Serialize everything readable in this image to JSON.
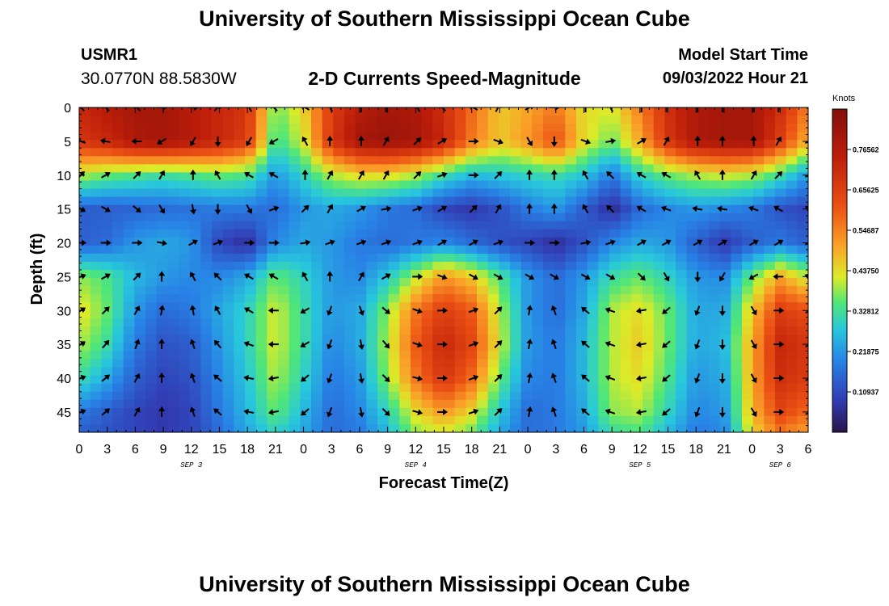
{
  "page": {
    "title": "University of Southern Mississippi Ocean Cube",
    "bottom_title": "University of Southern Mississippi Ocean Cube",
    "station_id": "USMR1",
    "station_coords": "30.0770N  88.5830W",
    "plot_title": "2-D Currents Speed-Magnitude",
    "start_label": "Model Start Time",
    "start_value": "09/03/2022 Hour 21"
  },
  "chart_data": {
    "type": "heatmap",
    "title": "2-D Currents Speed-Magnitude",
    "xlabel": "Forecast Time(Z)",
    "ylabel": "Depth (ft)",
    "x_tick_labels": [
      "0",
      "3",
      "6",
      "9",
      "12",
      "15",
      "18",
      "21",
      "0",
      "3",
      "6",
      "9",
      "12",
      "15",
      "18",
      "21",
      "0",
      "3",
      "6",
      "9",
      "12",
      "15",
      "18",
      "21",
      "0",
      "3",
      "6"
    ],
    "x_range_hours": [
      0,
      78
    ],
    "date_labels": [
      {
        "label": "SEP 3",
        "hour": 12
      },
      {
        "label": "SEP 4",
        "hour": 36
      },
      {
        "label": "SEP 5",
        "hour": 60
      },
      {
        "label": "SEP 6",
        "hour": 75
      }
    ],
    "y_ticks": [
      0,
      5,
      10,
      15,
      20,
      25,
      30,
      35,
      40,
      45
    ],
    "ylim": [
      48,
      0
    ],
    "colorbar": {
      "unit": "Knots",
      "min": 0,
      "max": 0.875,
      "tick_values": [
        0.10937,
        0.21875,
        0.32812,
        0.4375,
        0.54687,
        0.65625,
        0.76562
      ],
      "tick_labels": [
        "0.10937",
        "0.21875",
        "0.32812",
        "0.43750",
        "0.54687",
        "0.65625",
        "0.76562"
      ]
    },
    "speed_anchors": {
      "times": [
        0,
        3,
        6,
        9,
        12,
        15,
        18,
        21,
        24,
        27,
        30,
        33,
        36,
        39,
        42,
        45,
        48,
        51,
        54,
        57,
        60,
        63,
        66,
        69,
        72,
        75,
        78
      ],
      "depths": [
        0,
        5,
        10,
        15,
        20,
        25,
        30,
        35,
        40,
        45,
        48
      ],
      "values": [
        [
          0.72,
          0.76,
          0.8,
          0.8,
          0.76,
          0.72,
          0.68,
          0.36,
          0.45,
          0.66,
          0.76,
          0.8,
          0.78,
          0.7,
          0.58,
          0.46,
          0.5,
          0.56,
          0.44,
          0.42,
          0.55,
          0.7,
          0.78,
          0.8,
          0.8,
          0.7,
          0.55
        ],
        [
          0.68,
          0.72,
          0.78,
          0.8,
          0.76,
          0.72,
          0.66,
          0.32,
          0.42,
          0.68,
          0.8,
          0.82,
          0.8,
          0.72,
          0.56,
          0.46,
          0.52,
          0.62,
          0.44,
          0.36,
          0.5,
          0.68,
          0.78,
          0.8,
          0.8,
          0.66,
          0.48
        ],
        [
          0.4,
          0.36,
          0.34,
          0.32,
          0.34,
          0.36,
          0.34,
          0.22,
          0.3,
          0.4,
          0.44,
          0.44,
          0.4,
          0.32,
          0.26,
          0.28,
          0.3,
          0.32,
          0.28,
          0.18,
          0.3,
          0.36,
          0.4,
          0.42,
          0.4,
          0.32,
          0.22
        ],
        [
          0.14,
          0.14,
          0.15,
          0.16,
          0.17,
          0.18,
          0.18,
          0.16,
          0.22,
          0.24,
          0.22,
          0.18,
          0.16,
          0.1,
          0.08,
          0.12,
          0.18,
          0.22,
          0.14,
          0.06,
          0.16,
          0.2,
          0.22,
          0.2,
          0.18,
          0.12,
          0.1
        ],
        [
          0.14,
          0.16,
          0.22,
          0.24,
          0.22,
          0.1,
          0.06,
          0.2,
          0.24,
          0.22,
          0.18,
          0.16,
          0.18,
          0.2,
          0.16,
          0.12,
          0.1,
          0.06,
          0.12,
          0.2,
          0.24,
          0.22,
          0.14,
          0.08,
          0.14,
          0.18,
          0.14
        ],
        [
          0.38,
          0.34,
          0.26,
          0.22,
          0.2,
          0.2,
          0.24,
          0.36,
          0.3,
          0.22,
          0.2,
          0.28,
          0.4,
          0.52,
          0.46,
          0.34,
          0.22,
          0.16,
          0.22,
          0.32,
          0.36,
          0.3,
          0.22,
          0.2,
          0.36,
          0.5,
          0.4
        ],
        [
          0.44,
          0.36,
          0.22,
          0.16,
          0.18,
          0.24,
          0.3,
          0.42,
          0.32,
          0.22,
          0.24,
          0.38,
          0.56,
          0.66,
          0.6,
          0.4,
          0.22,
          0.16,
          0.24,
          0.4,
          0.44,
          0.36,
          0.24,
          0.24,
          0.46,
          0.66,
          0.62
        ],
        [
          0.4,
          0.32,
          0.18,
          0.12,
          0.14,
          0.22,
          0.3,
          0.42,
          0.32,
          0.2,
          0.24,
          0.4,
          0.6,
          0.72,
          0.64,
          0.42,
          0.22,
          0.18,
          0.26,
          0.4,
          0.46,
          0.36,
          0.24,
          0.26,
          0.5,
          0.72,
          0.68
        ],
        [
          0.32,
          0.24,
          0.14,
          0.1,
          0.12,
          0.2,
          0.28,
          0.4,
          0.3,
          0.18,
          0.22,
          0.38,
          0.56,
          0.68,
          0.58,
          0.36,
          0.2,
          0.18,
          0.26,
          0.4,
          0.44,
          0.34,
          0.22,
          0.24,
          0.5,
          0.7,
          0.66
        ],
        [
          0.18,
          0.14,
          0.1,
          0.08,
          0.1,
          0.18,
          0.26,
          0.36,
          0.26,
          0.16,
          0.2,
          0.3,
          0.44,
          0.52,
          0.44,
          0.28,
          0.16,
          0.18,
          0.24,
          0.38,
          0.4,
          0.3,
          0.2,
          0.22,
          0.48,
          0.64,
          0.58
        ],
        [
          0.14,
          0.12,
          0.1,
          0.08,
          0.1,
          0.16,
          0.24,
          0.3,
          0.24,
          0.16,
          0.18,
          0.26,
          0.38,
          0.42,
          0.36,
          0.24,
          0.16,
          0.18,
          0.22,
          0.32,
          0.34,
          0.26,
          0.18,
          0.2,
          0.44,
          0.56,
          0.5
        ]
      ]
    },
    "direction_anchors": {
      "depths": [
        0,
        5,
        10,
        15,
        20,
        25,
        30,
        35,
        40,
        45
      ],
      "angles_deg": [
        [
          -135,
          -135,
          -135,
          0,
          0,
          -45,
          -120,
          -135,
          -150,
          -120,
          -90,
          -90,
          -120,
          -135,
          -150,
          -60,
          -30,
          0,
          -90,
          -120,
          -90,
          -90,
          -90,
          -90,
          -90,
          -90,
          -135
        ],
        [
          -160,
          -170,
          -180,
          150,
          120,
          90,
          120,
          150,
          -120,
          -90,
          -90,
          -60,
          -45,
          -30,
          0,
          20,
          60,
          90,
          20,
          -10,
          -30,
          -60,
          -90,
          -90,
          -90,
          -60,
          -20
        ],
        [
          -45,
          -30,
          -45,
          -60,
          -90,
          -120,
          -150,
          -150,
          -90,
          -60,
          -60,
          -60,
          -45,
          -20,
          0,
          -45,
          -90,
          -90,
          -120,
          -135,
          -150,
          -150,
          -120,
          -90,
          -60,
          -45,
          -20
        ],
        [
          30,
          30,
          40,
          60,
          80,
          90,
          60,
          -20,
          -45,
          -60,
          -30,
          -10,
          -20,
          -30,
          -45,
          -60,
          -90,
          -90,
          -120,
          -135,
          -150,
          -160,
          -170,
          -170,
          -160,
          -150,
          -150
        ],
        [
          0,
          0,
          0,
          10,
          -30,
          -20,
          0,
          0,
          -10,
          -20,
          -20,
          -20,
          -20,
          -30,
          -30,
          -20,
          0,
          0,
          -10,
          -20,
          -30,
          -30,
          -30,
          -30,
          -30,
          -30,
          -20
        ],
        [
          -20,
          -30,
          -45,
          -90,
          -120,
          -135,
          -150,
          -150,
          -120,
          -90,
          -60,
          -30,
          0,
          20,
          30,
          30,
          30,
          30,
          30,
          30,
          45,
          60,
          90,
          120,
          150,
          180,
          -160
        ],
        [
          -30,
          -45,
          -60,
          -80,
          -100,
          -120,
          -150,
          180,
          150,
          110,
          70,
          40,
          20,
          0,
          -20,
          -45,
          -80,
          -110,
          -140,
          -160,
          170,
          140,
          110,
          90,
          60,
          0,
          -30
        ],
        [
          -30,
          -50,
          -70,
          -90,
          -110,
          -130,
          -160,
          180,
          150,
          110,
          80,
          50,
          20,
          0,
          -20,
          -45,
          -80,
          -110,
          -140,
          -160,
          170,
          140,
          110,
          90,
          60,
          0,
          -30
        ],
        [
          -20,
          -40,
          -60,
          -90,
          -110,
          -140,
          -170,
          170,
          140,
          110,
          80,
          45,
          15,
          0,
          -20,
          -45,
          -80,
          -110,
          -140,
          -160,
          170,
          140,
          110,
          90,
          60,
          0,
          -30
        ],
        [
          -20,
          -40,
          -60,
          -90,
          -110,
          -140,
          -170,
          170,
          140,
          110,
          80,
          45,
          15,
          0,
          -20,
          -45,
          -80,
          -110,
          -140,
          -160,
          170,
          140,
          110,
          90,
          60,
          0,
          -30
        ]
      ]
    }
  }
}
